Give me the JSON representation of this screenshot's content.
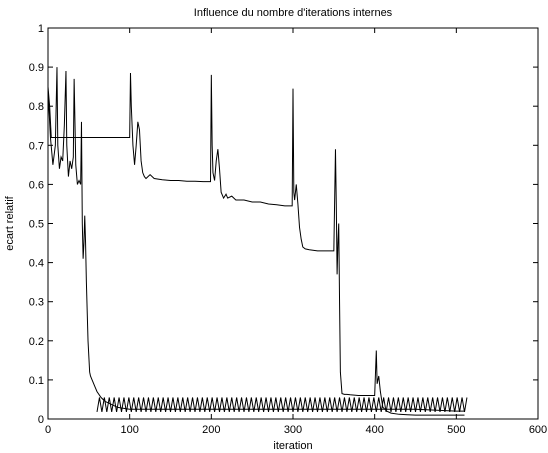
{
  "chart_data": {
    "type": "line",
    "title": "Influence du nombre d'iterations internes",
    "xlabel": "iteration",
    "ylabel": "ecart relatif",
    "xlim": [
      0,
      600
    ],
    "ylim": [
      0,
      1
    ],
    "xticks": [
      0,
      100,
      200,
      300,
      400,
      500,
      600
    ],
    "xtick_labels": [
      "0",
      "100",
      "200",
      "300",
      "400",
      "500",
      "600"
    ],
    "yticks": [
      0,
      0.1,
      0.2,
      0.3,
      0.4,
      0.5,
      0.6,
      0.7,
      0.8,
      0.9,
      1
    ],
    "ytick_labels": [
      "0",
      "0.1",
      "0.2",
      "0.3",
      "0.4",
      "0.5",
      "0.6",
      "0.7",
      "0.8",
      "0.9",
      "1"
    ],
    "grid": false,
    "line_color": "#000000",
    "series": [
      {
        "x": [
          0,
          2,
          4,
          6,
          100,
          101,
          102,
          104,
          106,
          108,
          110,
          112,
          114,
          116,
          118,
          120,
          125,
          130,
          140,
          150,
          160,
          170,
          180,
          190,
          199,
          200,
          201,
          202,
          204,
          206,
          208,
          210,
          212,
          215,
          218,
          220,
          225,
          230,
          240,
          250,
          260,
          270,
          280,
          290,
          299,
          300,
          301,
          302,
          304,
          306,
          308,
          310,
          312,
          315,
          320,
          330,
          340,
          350,
          352,
          353,
          354,
          355,
          356,
          357,
          358,
          360,
          363,
          366,
          370,
          380,
          390,
          400,
          402,
          403,
          405,
          407,
          410,
          415,
          420,
          430,
          440,
          450,
          460,
          470,
          480,
          490,
          500,
          505,
          510
        ],
        "y": [
          0.85,
          0.8,
          0.72,
          0.72,
          0.72,
          0.885,
          0.8,
          0.7,
          0.65,
          0.7,
          0.76,
          0.74,
          0.66,
          0.63,
          0.62,
          0.615,
          0.625,
          0.615,
          0.612,
          0.61,
          0.61,
          0.608,
          0.608,
          0.607,
          0.607,
          0.88,
          0.7,
          0.63,
          0.61,
          0.66,
          0.69,
          0.64,
          0.58,
          0.565,
          0.575,
          0.565,
          0.57,
          0.56,
          0.56,
          0.555,
          0.555,
          0.55,
          0.548,
          0.545,
          0.545,
          0.845,
          0.58,
          0.56,
          0.6,
          0.55,
          0.49,
          0.46,
          0.44,
          0.435,
          0.433,
          0.43,
          0.43,
          0.43,
          0.69,
          0.55,
          0.37,
          0.45,
          0.5,
          0.3,
          0.12,
          0.065,
          0.063,
          0.063,
          0.062,
          0.06,
          0.06,
          0.06,
          0.175,
          0.09,
          0.11,
          0.07,
          0.03,
          0.02,
          0.015,
          0.012,
          0.011,
          0.01,
          0.01,
          0.01,
          0.01,
          0.01,
          0.01,
          0.01,
          0.01
        ]
      },
      {
        "x": [
          0,
          3,
          6,
          9,
          11,
          12,
          14,
          16,
          18,
          20,
          22,
          23,
          25,
          27,
          29,
          31,
          32,
          34,
          36,
          38,
          40,
          41,
          42,
          43,
          44,
          45,
          46,
          47,
          49,
          51,
          52,
          54,
          57,
          60,
          65,
          70,
          75,
          80,
          85,
          90,
          100,
          120,
          150,
          200,
          250,
          300,
          350,
          400,
          450,
          500,
          510
        ],
        "y": [
          0.84,
          0.72,
          0.65,
          0.7,
          0.9,
          0.7,
          0.64,
          0.67,
          0.66,
          0.75,
          0.89,
          0.7,
          0.62,
          0.66,
          0.64,
          0.67,
          0.87,
          0.65,
          0.6,
          0.61,
          0.6,
          0.76,
          0.5,
          0.41,
          0.45,
          0.52,
          0.45,
          0.35,
          0.2,
          0.12,
          0.11,
          0.1,
          0.085,
          0.07,
          0.055,
          0.045,
          0.04,
          0.035,
          0.03,
          0.028,
          0.025,
          0.025,
          0.025,
          0.025,
          0.025,
          0.025,
          0.025,
          0.025,
          0.025,
          0.02,
          0.02
        ]
      }
    ],
    "oscillation": {
      "note_free": true,
      "start": 60,
      "end": 512,
      "period": 6,
      "low": 0.018,
      "high": 0.055
    }
  }
}
